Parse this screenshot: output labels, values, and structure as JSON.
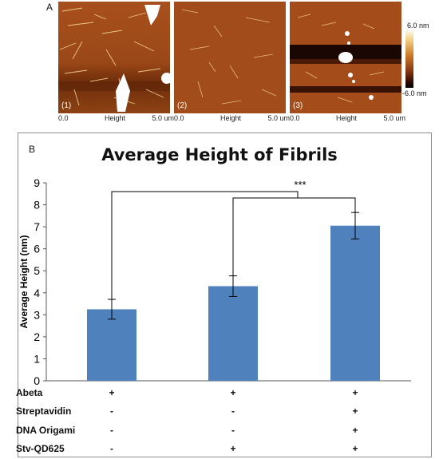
{
  "panel_a": {
    "label": "A",
    "images": [
      {
        "number": "(1)",
        "axis_min": "0.0",
        "axis_title": "Height",
        "axis_max": "5.0 um"
      },
      {
        "number": "(2)",
        "axis_min": "0.0",
        "axis_title": "Height",
        "axis_max": "5.0 um"
      },
      {
        "number": "(3)",
        "axis_min": "0.0",
        "axis_title": "Height",
        "axis_max": "5.0 um"
      }
    ],
    "colorbar": {
      "max": "6.0 nm",
      "min": "-6.0 nm"
    }
  },
  "panel_b": {
    "label": "B"
  },
  "chart_data": {
    "type": "bar",
    "title": "Average Height of Fibrils",
    "xlabel": "",
    "ylabel": "Average Height (nm)",
    "ylim": [
      0,
      9
    ],
    "yticks": [
      0,
      1,
      2,
      3,
      4,
      5,
      6,
      7,
      8,
      9
    ],
    "categories": [
      "1",
      "2",
      "3"
    ],
    "values": [
      3.25,
      4.3,
      7.05
    ],
    "errors": [
      0.45,
      0.47,
      0.6
    ],
    "color": "#4f81bd",
    "significance": {
      "label": "***",
      "comparisons": [
        [
          0,
          2
        ],
        [
          1,
          2
        ]
      ]
    },
    "conditions": [
      {
        "label": "Abeta",
        "marks": [
          "+",
          "+",
          "+"
        ]
      },
      {
        "label": "Streptavidin",
        "marks": [
          "-",
          "-",
          "+"
        ]
      },
      {
        "label": "DNA Origami",
        "marks": [
          "-",
          "-",
          "+"
        ]
      },
      {
        "label": "Stv-QD625",
        "marks": [
          "-",
          "+",
          "+"
        ]
      }
    ]
  }
}
